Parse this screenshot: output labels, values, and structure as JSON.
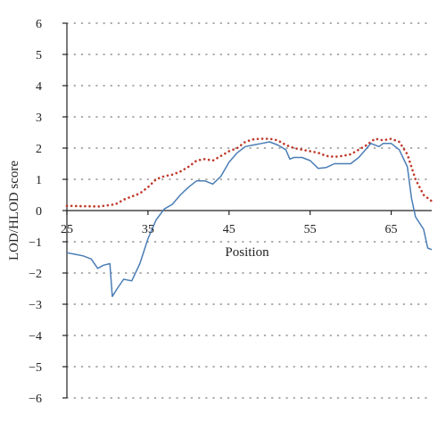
{
  "chart_data": {
    "type": "line",
    "title": "",
    "xlabel": "Position",
    "ylabel": "LOD/HLOD score",
    "xlim": [
      25,
      70
    ],
    "ylim": [
      -6,
      6
    ],
    "x_ticks": [
      25,
      35,
      45,
      55,
      65
    ],
    "y_ticks": [
      -6,
      -5,
      -4,
      -3,
      -2,
      -1,
      0,
      1,
      2,
      3,
      4,
      5,
      6
    ],
    "x_tick_labels": [
      "25",
      "35",
      "45",
      "55",
      "65"
    ],
    "y_tick_labels": [
      "−6",
      "−5",
      "−4",
      "−3",
      "−2",
      "−1",
      "0",
      "1",
      "2",
      "3",
      "4",
      "5",
      "6"
    ],
    "grid": "horizontal dotted",
    "legend": "none",
    "series": [
      {
        "style": "dotted",
        "color": "#c0392b",
        "points": [
          [
            25,
            0.15
          ],
          [
            27,
            0.14
          ],
          [
            29,
            0.13
          ],
          [
            31,
            0.2
          ],
          [
            32,
            0.35
          ],
          [
            33,
            0.45
          ],
          [
            34,
            0.55
          ],
          [
            35,
            0.75
          ],
          [
            36,
            1.0
          ],
          [
            37,
            1.1
          ],
          [
            38,
            1.15
          ],
          [
            39,
            1.25
          ],
          [
            40,
            1.4
          ],
          [
            41,
            1.6
          ],
          [
            42,
            1.65
          ],
          [
            43,
            1.6
          ],
          [
            44,
            1.75
          ],
          [
            45,
            1.9
          ],
          [
            46,
            2.0
          ],
          [
            47,
            2.2
          ],
          [
            48,
            2.28
          ],
          [
            49,
            2.3
          ],
          [
            50,
            2.3
          ],
          [
            51,
            2.25
          ],
          [
            52,
            2.1
          ],
          [
            53,
            2.0
          ],
          [
            54,
            1.95
          ],
          [
            55,
            1.9
          ],
          [
            56,
            1.85
          ],
          [
            57,
            1.75
          ],
          [
            58,
            1.72
          ],
          [
            59,
            1.75
          ],
          [
            60,
            1.8
          ],
          [
            61,
            1.95
          ],
          [
            62,
            2.1
          ],
          [
            63,
            2.3
          ],
          [
            64,
            2.25
          ],
          [
            65,
            2.3
          ],
          [
            66,
            2.2
          ],
          [
            67,
            1.8
          ],
          [
            68,
            1.0
          ],
          [
            69,
            0.5
          ],
          [
            70,
            0.3
          ]
        ]
      },
      {
        "style": "solid",
        "color": "#4a7db5",
        "points": [
          [
            25,
            -1.35
          ],
          [
            26,
            -1.4
          ],
          [
            27,
            -1.45
          ],
          [
            28,
            -1.55
          ],
          [
            28.8,
            -1.85
          ],
          [
            29.5,
            -1.75
          ],
          [
            30.3,
            -1.7
          ],
          [
            30.6,
            -2.75
          ],
          [
            31.2,
            -2.5
          ],
          [
            32,
            -2.2
          ],
          [
            33,
            -2.25
          ],
          [
            34,
            -1.7
          ],
          [
            35,
            -0.9
          ],
          [
            36,
            -0.3
          ],
          [
            37,
            0.05
          ],
          [
            38,
            0.2
          ],
          [
            39,
            0.5
          ],
          [
            40,
            0.75
          ],
          [
            41,
            0.95
          ],
          [
            42,
            0.95
          ],
          [
            43,
            0.85
          ],
          [
            44,
            1.1
          ],
          [
            45,
            1.55
          ],
          [
            46,
            1.85
          ],
          [
            47,
            2.05
          ],
          [
            48,
            2.1
          ],
          [
            49,
            2.15
          ],
          [
            50,
            2.2
          ],
          [
            51,
            2.1
          ],
          [
            52,
            1.95
          ],
          [
            52.5,
            1.65
          ],
          [
            53,
            1.7
          ],
          [
            54,
            1.7
          ],
          [
            55,
            1.6
          ],
          [
            56,
            1.35
          ],
          [
            57,
            1.38
          ],
          [
            58,
            1.5
          ],
          [
            59,
            1.5
          ],
          [
            60,
            1.5
          ],
          [
            61,
            1.7
          ],
          [
            62,
            2.0
          ],
          [
            62.5,
            2.15
          ],
          [
            63.5,
            2.05
          ],
          [
            64,
            2.15
          ],
          [
            65,
            2.15
          ],
          [
            66,
            1.95
          ],
          [
            67,
            1.4
          ],
          [
            67.5,
            0.4
          ],
          [
            68,
            -0.2
          ],
          [
            69,
            -0.6
          ],
          [
            69.5,
            -1.2
          ],
          [
            70,
            -1.25
          ]
        ]
      }
    ]
  }
}
